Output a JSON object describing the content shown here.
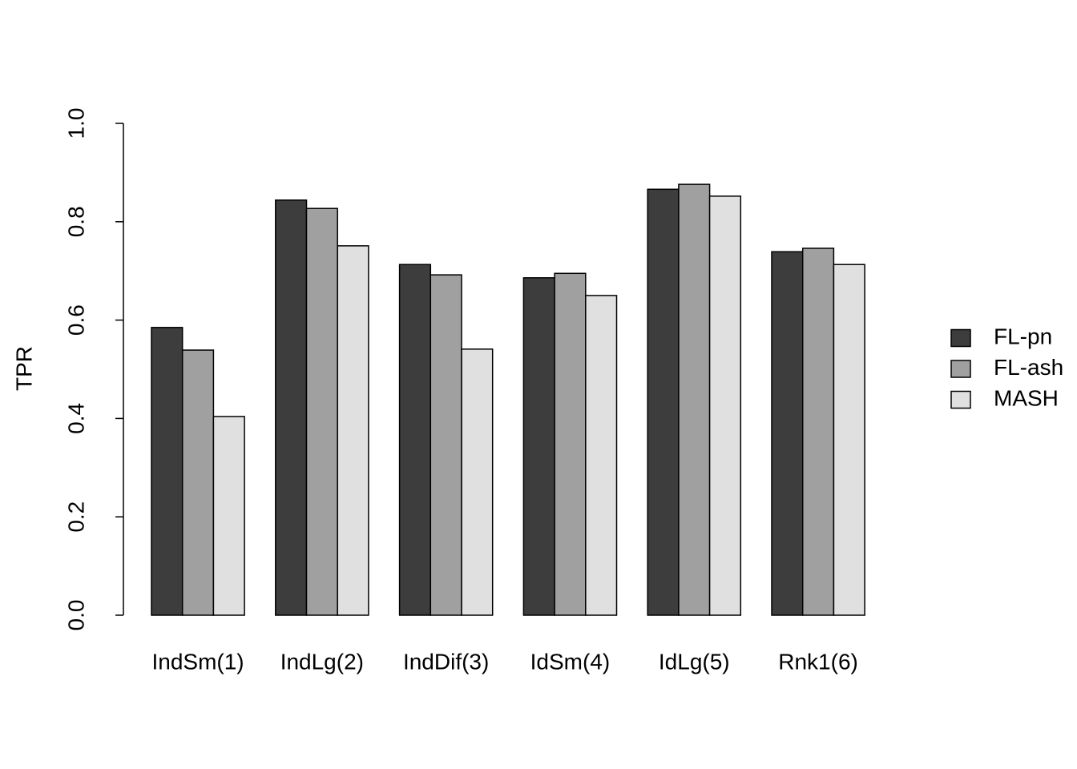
{
  "chart_data": {
    "type": "bar",
    "y_label": "TPR",
    "categories": [
      "IndSm(1)",
      "IndLg(2)",
      "IndDif(3)",
      "IdSm(4)",
      "IdLg(5)",
      "Rnk1(6)"
    ],
    "series": [
      {
        "name": "FL-pn",
        "color": "#3d3d3d",
        "values": [
          0.585,
          0.844,
          0.713,
          0.686,
          0.866,
          0.739
        ]
      },
      {
        "name": "FL-ash",
        "color": "#a0a0a0",
        "values": [
          0.539,
          0.827,
          0.692,
          0.695,
          0.876,
          0.746
        ]
      },
      {
        "name": "MASH",
        "color": "#e0e0e0",
        "values": [
          0.404,
          0.751,
          0.541,
          0.65,
          0.852,
          0.713
        ]
      }
    ],
    "ylim": [
      0,
      1
    ],
    "yticks": [
      {
        "value": 0,
        "label": "0.0"
      },
      0.2,
      0.4,
      0.6,
      0.8,
      {
        "value": 1,
        "label": "1.0"
      }
    ],
    "grid": false,
    "legend": "right"
  }
}
